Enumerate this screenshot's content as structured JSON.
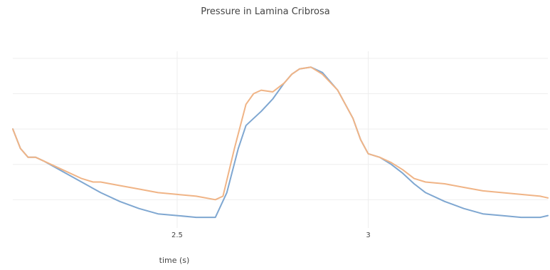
{
  "chart_data": {
    "type": "line",
    "title": "Pressure in Lamina Cribrosa",
    "xlabel": "time (s)",
    "ylabel": "",
    "xlim": [
      2.07,
      3.47
    ],
    "ylim": [
      0,
      1
    ],
    "x_ticks": [
      2.5,
      3
    ],
    "x_tick_labels": [
      "2.5",
      "3"
    ],
    "y_gridlines": [
      0.16,
      0.36,
      0.56,
      0.76,
      0.96
    ],
    "show_y_tick_labels": false,
    "grid": true,
    "legend": false,
    "series": [
      {
        "color": "#7fa7d1",
        "x": [
          2.07,
          2.09,
          2.11,
          2.13,
          2.15,
          2.2,
          2.25,
          2.3,
          2.35,
          2.4,
          2.45,
          2.5,
          2.55,
          2.6,
          2.63,
          2.66,
          2.68,
          2.7,
          2.72,
          2.75,
          2.78,
          2.8,
          2.82,
          2.85,
          2.88,
          2.92,
          2.96,
          2.98,
          3.0,
          3.03,
          3.06,
          3.09,
          3.12,
          3.15,
          3.2,
          3.25,
          3.3,
          3.35,
          3.4,
          3.45,
          3.47
        ],
        "y": [
          0.56,
          0.45,
          0.4,
          0.4,
          0.38,
          0.32,
          0.26,
          0.2,
          0.15,
          0.11,
          0.08,
          0.07,
          0.06,
          0.06,
          0.2,
          0.45,
          0.58,
          0.62,
          0.66,
          0.73,
          0.82,
          0.87,
          0.9,
          0.91,
          0.88,
          0.78,
          0.62,
          0.5,
          0.42,
          0.4,
          0.36,
          0.31,
          0.25,
          0.2,
          0.15,
          0.11,
          0.08,
          0.07,
          0.06,
          0.06,
          0.07
        ]
      },
      {
        "color": "#f0b486",
        "x": [
          2.07,
          2.09,
          2.11,
          2.13,
          2.15,
          2.2,
          2.25,
          2.28,
          2.3,
          2.35,
          2.4,
          2.45,
          2.5,
          2.55,
          2.6,
          2.62,
          2.65,
          2.68,
          2.7,
          2.72,
          2.75,
          2.78,
          2.8,
          2.82,
          2.85,
          2.88,
          2.92,
          2.96,
          2.98,
          3.0,
          3.03,
          3.06,
          3.09,
          3.12,
          3.15,
          3.2,
          3.25,
          3.3,
          3.35,
          3.4,
          3.45,
          3.47
        ],
        "y": [
          0.56,
          0.45,
          0.4,
          0.4,
          0.38,
          0.33,
          0.28,
          0.26,
          0.26,
          0.24,
          0.22,
          0.2,
          0.19,
          0.18,
          0.16,
          0.18,
          0.45,
          0.7,
          0.76,
          0.78,
          0.77,
          0.82,
          0.87,
          0.9,
          0.91,
          0.87,
          0.78,
          0.62,
          0.5,
          0.42,
          0.4,
          0.37,
          0.33,
          0.28,
          0.26,
          0.25,
          0.23,
          0.21,
          0.2,
          0.19,
          0.18,
          0.17
        ]
      }
    ]
  }
}
